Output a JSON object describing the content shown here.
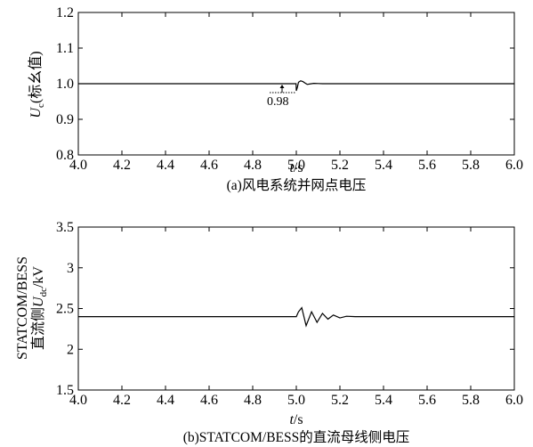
{
  "chart_data": [
    {
      "type": "line",
      "caption": "(a)风电系统并网点电压",
      "xlabel_italic": "t",
      "xlabel_unit": "/s",
      "ylabel_italic": "U",
      "ylabel_sub": "c",
      "ylabel_rest": "(标幺值)",
      "xlim": [
        4.0,
        6.0
      ],
      "ylim": [
        0.8,
        1.2
      ],
      "xticks": [
        "4.0",
        "4.2",
        "4.4",
        "4.6",
        "4.8",
        "5.0",
        "5.2",
        "5.4",
        "5.6",
        "5.8",
        "6.0"
      ],
      "yticks": [
        "0.8",
        "0.9",
        "1.0",
        "1.1",
        "1.2"
      ],
      "annotation": {
        "text": "0.98",
        "x": 5.0,
        "y": 0.98
      },
      "series": [
        {
          "x": [
            4.0,
            4.999,
            5.0,
            5.005,
            5.01,
            5.02,
            5.03,
            5.04,
            5.05,
            5.06,
            5.08,
            5.1,
            5.12,
            5.15,
            6.0
          ],
          "y": [
            1.0,
            1.0,
            0.98,
            0.99,
            1.004,
            1.008,
            1.006,
            1.002,
            0.998,
            0.999,
            1.001,
            1.0005,
            1.0,
            1.0,
            1.0
          ]
        }
      ]
    },
    {
      "type": "line",
      "caption": "(b)STATCOM/BESS的直流母线侧电压",
      "xlabel_italic": "t",
      "xlabel_unit": "/s",
      "ylabel_line1": "STATCOM/BESS",
      "ylabel_line2_pre": "直流侧",
      "ylabel_line2_italic": "U",
      "ylabel_line2_sub": "dc",
      "ylabel_line2_post": "/kV",
      "xlim": [
        4.0,
        6.0
      ],
      "ylim": [
        1.5,
        3.5
      ],
      "xticks": [
        "4.0",
        "4.2",
        "4.4",
        "4.6",
        "4.8",
        "5.0",
        "5.2",
        "5.4",
        "5.6",
        "5.8",
        "6.0"
      ],
      "yticks": [
        "1.5",
        "2",
        "2.5",
        "3",
        "3.5"
      ],
      "series": [
        {
          "x": [
            4.0,
            5.0,
            5.01,
            5.025,
            5.045,
            5.07,
            5.095,
            5.12,
            5.145,
            5.17,
            5.2,
            5.23,
            5.27,
            6.0
          ],
          "y": [
            2.4,
            2.4,
            2.46,
            2.51,
            2.29,
            2.46,
            2.33,
            2.44,
            2.37,
            2.42,
            2.385,
            2.405,
            2.4,
            2.4
          ]
        }
      ]
    }
  ]
}
